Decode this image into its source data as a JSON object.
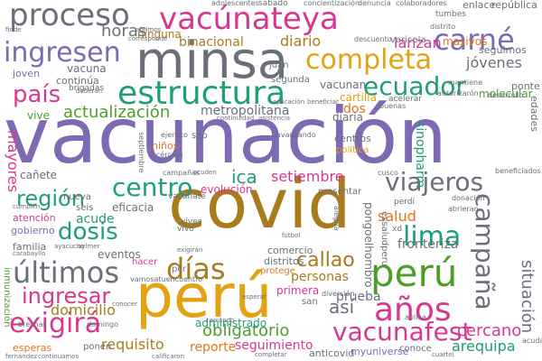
{
  "colors": {
    "background": "#ffffff",
    "palette": [
      "#6b6f7a",
      "#d6388f",
      "#7d6ab2",
      "#4e9d2a",
      "#1f9e78",
      "#a87c1d",
      "#e3a212",
      "#e5751a"
    ]
  },
  "words": [
    {
      "text": "vacunación",
      "color": "#7d6ab2"
    },
    {
      "text": "covid",
      "color": "#a87c1d"
    },
    {
      "text": "minsa",
      "color": "#6b6f7a"
    },
    {
      "text": "perú",
      "color": "#e3a212"
    },
    {
      "text": "proceso",
      "color": "#6b6f7a"
    },
    {
      "text": "vacúnateya",
      "color": "#d6388f"
    },
    {
      "text": "estructura",
      "color": "#1f9e78"
    },
    {
      "text": "completa",
      "color": "#e3a212"
    },
    {
      "text": "carné",
      "color": "#7d6ab2"
    },
    {
      "text": "ingresen",
      "color": "#7d6ab2"
    },
    {
      "text": "horas",
      "color": "#6b6f7a"
    },
    {
      "text": "país",
      "color": "#d6388f"
    },
    {
      "text": "ecuador",
      "color": "#1f9e78"
    },
    {
      "text": "diario",
      "color": "#a87c1d"
    },
    {
      "text": "binacional",
      "color": "#a87c1d"
    },
    {
      "text": "lanzan",
      "color": "#d6388f"
    },
    {
      "text": "masivos",
      "color": "#e5751a"
    },
    {
      "text": "jóvenes",
      "color": "#6b6f7a"
    },
    {
      "text": "actualización",
      "color": "#4e9d2a"
    },
    {
      "text": "metropolitana",
      "color": "#6b6f7a"
    },
    {
      "text": "centro",
      "color": "#1f9e78"
    },
    {
      "text": "región",
      "color": "#1f9e78"
    },
    {
      "text": "dosis",
      "color": "#1f9e78"
    },
    {
      "text": "ica",
      "color": "#1f9e78"
    },
    {
      "text": "setiembre",
      "color": "#d6388f"
    },
    {
      "text": "viajeros",
      "color": "#6b6f7a"
    },
    {
      "text": "lima",
      "color": "#1f9e78"
    },
    {
      "text": "perú",
      "color": "#4e9d2a"
    },
    {
      "text": "campaña",
      "color": "#6b6f7a"
    },
    {
      "text": "días",
      "color": "#a87c1d"
    },
    {
      "text": "últimos",
      "color": "#6b6f7a"
    },
    {
      "text": "ingresar",
      "color": "#d6388f"
    },
    {
      "text": "años",
      "color": "#d6388f"
    },
    {
      "text": "callao",
      "color": "#a87c1d"
    },
    {
      "text": "así",
      "color": "#6b6f7a"
    },
    {
      "text": "exigirá",
      "color": "#d6388f"
    },
    {
      "text": "vacunafest",
      "color": "#d6388f"
    },
    {
      "text": "domicilio",
      "color": "#a87c1d"
    },
    {
      "text": "obligatorio",
      "color": "#4e9d2a"
    },
    {
      "text": "prueba",
      "color": "#6b6f7a"
    },
    {
      "text": "cercano",
      "color": "#d6388f"
    },
    {
      "text": "arequipa",
      "color": "#1f9e78"
    },
    {
      "text": "situación",
      "color": "#6b6f7a"
    },
    {
      "text": "seguimiento",
      "color": "#d6388f"
    },
    {
      "text": "requisito",
      "color": "#a87c1d"
    },
    {
      "text": "reporte",
      "color": "#e5751a"
    },
    {
      "text": "administrado",
      "color": "#1f9e78"
    },
    {
      "text": "personas",
      "color": "#a87c1d"
    },
    {
      "text": "salud",
      "color": "#e5751a"
    },
    {
      "text": "acude",
      "color": "#1f9e78"
    },
    {
      "text": "eficacia",
      "color": "#6b6f7a"
    },
    {
      "text": "fronteriza",
      "color": "#6b6f7a"
    },
    {
      "text": "evolución",
      "color": "#d6388f"
    },
    {
      "text": "mayores",
      "color": "#d6388f"
    },
    {
      "text": "sinopharm",
      "color": "#1f9e78"
    },
    {
      "text": "dos",
      "color": "#e5751a"
    },
    {
      "text": "cartilla",
      "color": "#e3a212"
    },
    {
      "text": "vacunan",
      "color": "#6b6f7a"
    },
    {
      "text": "molecular",
      "color": "#4e9d2a"
    },
    {
      "text": "vive",
      "color": "#4e9d2a"
    },
    {
      "text": "vacuna",
      "color": "#6b6f7a"
    },
    {
      "text": "continúa",
      "color": "#6b6f7a"
    },
    {
      "text": "joven",
      "color": "#7d6ab2"
    },
    {
      "text": "ninguna",
      "color": "#a87c1d"
    },
    {
      "text": "diaria",
      "color": "#6b6f7a"
    },
    {
      "text": "primera",
      "color": "#d6388f"
    },
    {
      "text": "distritos",
      "color": "#6b6f7a"
    },
    {
      "text": "comercio",
      "color": "#6b6f7a"
    },
    {
      "text": "eventos",
      "color": "#6b6f7a"
    },
    {
      "text": "familia",
      "color": "#6b6f7a"
    },
    {
      "text": "atención",
      "color": "#d6388f"
    },
    {
      "text": "gobierno",
      "color": "#7d6ab2"
    },
    {
      "text": "cañete",
      "color": "#6b6f7a"
    },
    {
      "text": "seis",
      "color": "#6b6f7a"
    },
    {
      "text": "nueva",
      "color": "#6b6f7a"
    },
    {
      "text": "niños",
      "color": "#e5751a"
    },
    {
      "text": "pongoelhombro",
      "color": "#6b6f7a"
    },
    {
      "text": "essaludperu",
      "color": "#6b6f7a"
    },
    {
      "text": "ponte",
      "color": "#6b6f7a"
    },
    {
      "text": "enlace",
      "color": "#6b6f7a"
    },
    {
      "text": "república",
      "color": "#6b6f7a"
    },
    {
      "text": "seguimos",
      "color": "#6b6f7a"
    },
    {
      "text": "segunda",
      "color": "#6b6f7a"
    },
    {
      "text": "brigadas",
      "color": "#6b6f7a"
    },
    {
      "text": "centros",
      "color": "#6b6f7a"
    },
    {
      "text": "política",
      "color": "#e3a212"
    },
    {
      "text": "protege",
      "color": "#e5751a"
    },
    {
      "text": "pcr",
      "color": "#7d6ab2"
    },
    {
      "text": "hacer",
      "color": "#d6388f"
    },
    {
      "text": "vivo",
      "color": "#6b6f7a"
    },
    {
      "text": "conoce",
      "color": "#6b6f7a"
    },
    {
      "text": "myuniverse",
      "color": "#7d6ab2"
    },
    {
      "text": "anticovid",
      "color": "#6b6f7a"
    },
    {
      "text": "ponen",
      "color": "#6b6f7a"
    },
    {
      "text": "esperas",
      "color": "#e5751a"
    },
    {
      "text": "inmunización",
      "color": "#4e9d2a"
    },
    {
      "text": "edades",
      "color": "#6b6f7a"
    },
    {
      "text": "acelerar",
      "color": "#6b6f7a"
    },
    {
      "text": "varicela",
      "color": "#6b6f7a"
    },
    {
      "text": "juan",
      "color": "#6b6f7a"
    },
    {
      "text": "presentar",
      "color": "#6b6f7a"
    },
    {
      "text": "san",
      "color": "#6b6f7a"
    },
    {
      "text": "xd",
      "color": "#6b6f7a"
    },
    {
      "text": "vives",
      "color": "#6b6f7a"
    },
    {
      "text": "perdí",
      "color": "#6b6f7a"
    },
    {
      "text": "vacunate",
      "color": "#6b6f7a"
    },
    {
      "text": "sep",
      "color": "#6b6f7a"
    },
    {
      "text": "sábado",
      "color": "#6b6f7a"
    },
    {
      "text": "adolescentes",
      "color": "#6b6f7a"
    },
    {
      "text": "tumbes",
      "color": "#6b6f7a"
    },
    {
      "text": "distrito",
      "color": "#6b6f7a"
    },
    {
      "text": "denuncia",
      "color": "#6b6f7a"
    },
    {
      "text": "colaboradores",
      "color": "#6b6f7a"
    },
    {
      "text": "concientización",
      "color": "#6b6f7a"
    },
    {
      "text": "corresponde",
      "color": "#6b6f7a"
    },
    {
      "text": "descuento",
      "color": "#6b6f7a"
    },
    {
      "text": "mantiene",
      "color": "#6b6f7a"
    },
    {
      "text": "autorizarón",
      "color": "#6b6f7a"
    },
    {
      "text": "desarrollo",
      "color": "#6b6f7a"
    },
    {
      "text": "continuidad",
      "color": "#6b6f7a"
    },
    {
      "text": "asistencia",
      "color": "#6b6f7a"
    },
    {
      "text": "avanzando",
      "color": "#6b6f7a"
    },
    {
      "text": "ejercito",
      "color": "#6b6f7a"
    },
    {
      "text": "buenas",
      "color": "#6b6f7a"
    },
    {
      "text": "cusco",
      "color": "#6b6f7a"
    },
    {
      "text": "donación",
      "color": "#6b6f7a"
    },
    {
      "text": "beneficiados",
      "color": "#6b6f7a"
    },
    {
      "text": "abrieran",
      "color": "#6b6f7a"
    },
    {
      "text": "campañas",
      "color": "#6b6f7a"
    },
    {
      "text": "acuden",
      "color": "#6b6f7a"
    },
    {
      "text": "esperar",
      "color": "#6b6f7a"
    },
    {
      "text": "cerrando",
      "color": "#6b6f7a"
    },
    {
      "text": "domingo",
      "color": "#6b6f7a"
    },
    {
      "text": "calificaron",
      "color": "#6b6f7a"
    },
    {
      "text": "completar",
      "color": "#6b6f7a"
    },
    {
      "text": "continuamos",
      "color": "#6b6f7a"
    },
    {
      "text": "cuartel",
      "color": "#6b6f7a"
    },
    {
      "text": "aplica",
      "color": "#6b6f7a"
    },
    {
      "text": "acuda",
      "color": "#6b6f7a"
    },
    {
      "text": "diversión",
      "color": "#6b6f7a"
    },
    {
      "text": "acércate",
      "color": "#6b6f7a"
    },
    {
      "text": "septiembre",
      "color": "#6b6f7a"
    },
    {
      "text": "deberán",
      "color": "#6b6f7a"
    },
    {
      "text": "aplicación",
      "color": "#6b6f7a"
    },
    {
      "text": "beneficiar",
      "color": "#6b6f7a"
    },
    {
      "text": "brechas",
      "color": "#6b6f7a"
    },
    {
      "text": "alegría",
      "color": "#6b6f7a"
    },
    {
      "text": "vamosatuencuentro",
      "color": "#6b6f7a"
    },
    {
      "text": "fútbol",
      "color": "#6b6f7a"
    },
    {
      "text": "exigirán",
      "color": "#6b6f7a"
    },
    {
      "text": "ayacucho",
      "color": "#6b6f7a"
    },
    {
      "text": "conocer",
      "color": "#6b6f7a"
    },
    {
      "text": "carabayllo",
      "color": "#6b6f7a"
    },
    {
      "text": "fernández",
      "color": "#6b6f7a"
    },
    {
      "text": "finde",
      "color": "#6b6f7a"
    },
    {
      "text": "abrimos",
      "color": "#6b6f7a"
    },
    {
      "text": "aylmer",
      "color": "#6b6f7a"
    },
    {
      "text": "cumplen",
      "color": "#6b6f7a"
    }
  ]
}
